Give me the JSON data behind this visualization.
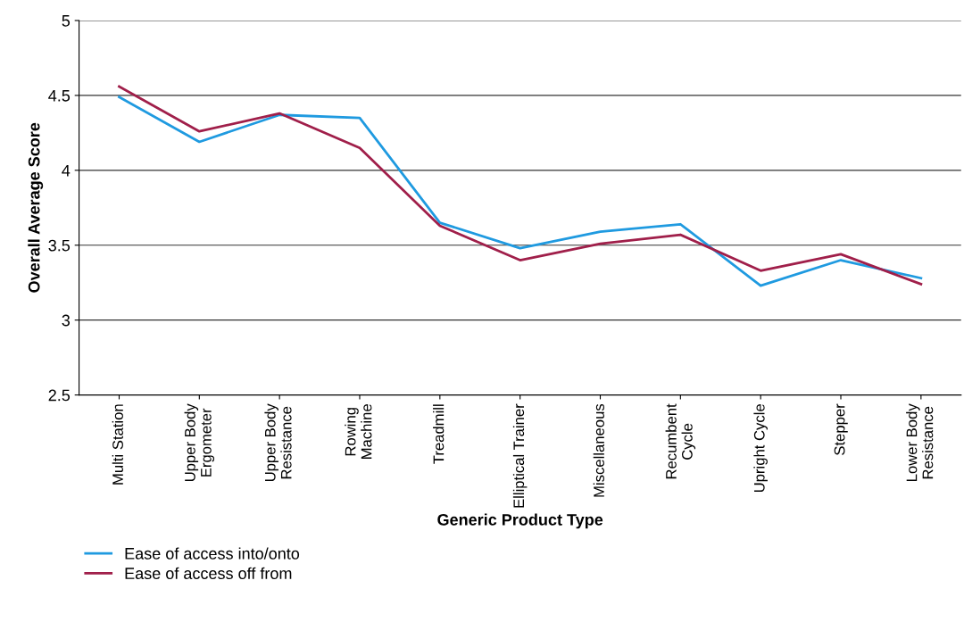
{
  "chart_data": {
    "type": "line",
    "xlabel": "Generic Product Type",
    "ylabel": "Overall Average Score",
    "categories": [
      "Multi Station",
      "Upper Body\nErgometer",
      "Upper Body\nResistance",
      "Rowing\nMachine",
      "Treadmill",
      "Elliptical Trainer",
      "Miscellaneous",
      "Recumbent\nCycle",
      "Upright Cycle",
      "Stepper",
      "Lower Body\nResistance"
    ],
    "series": [
      {
        "name": "Ease of access into/onto",
        "color": "#1f9ae0",
        "values": [
          4.49,
          4.19,
          4.37,
          4.35,
          3.65,
          3.48,
          3.59,
          3.64,
          3.23,
          3.4,
          3.28
        ]
      },
      {
        "name": "Ease of access off from",
        "color": "#a01f4a",
        "values": [
          4.56,
          4.26,
          4.38,
          4.15,
          3.63,
          3.4,
          3.51,
          3.57,
          3.33,
          3.44,
          3.24
        ]
      }
    ],
    "ylim": [
      2.5,
      5
    ],
    "yticks": [
      2.5,
      3,
      3.5,
      4,
      4.5,
      5
    ],
    "grid": "y",
    "legend": "bottom left",
    "marker": "none",
    "line_style": "solid"
  }
}
